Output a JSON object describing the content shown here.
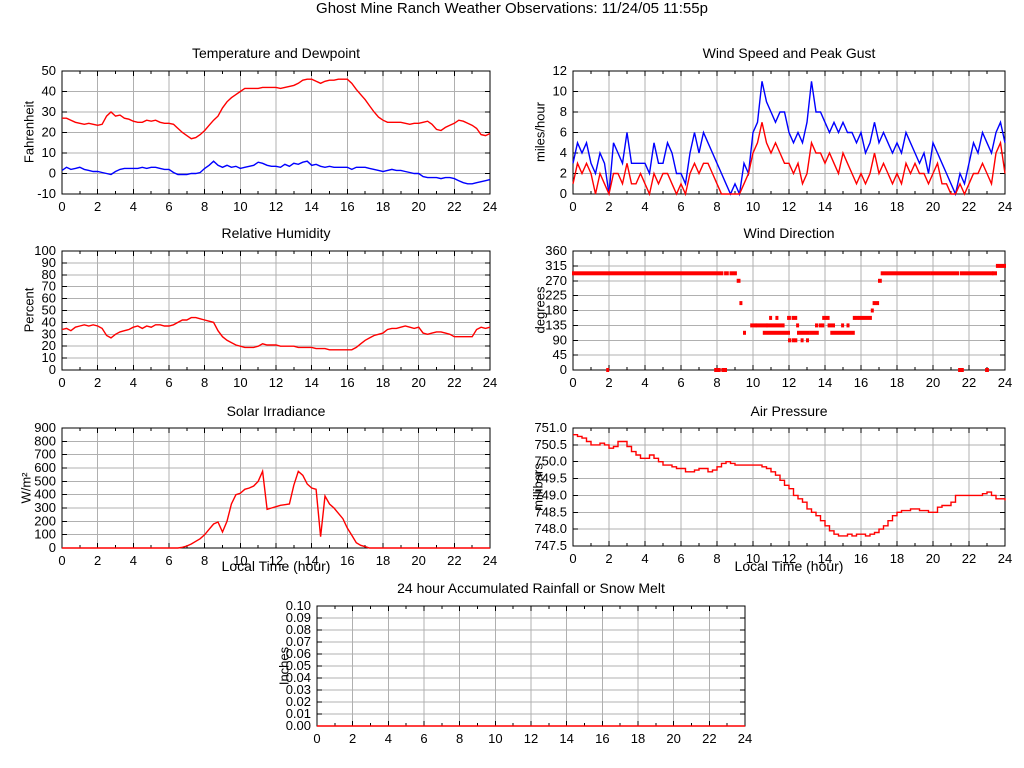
{
  "page_title": "Ghost Mine Ranch Weather Observations: 11/24/05 11:55p",
  "colors": {
    "series_red": "#ff0000",
    "series_blue": "#0000ff",
    "grid": "#b0b0b0",
    "axis": "#000000",
    "background": "#ffffff"
  },
  "chart_data": [
    {
      "id": "temperature_dewpoint",
      "type": "line",
      "title": "Temperature and Dewpoint",
      "ylabel": "Fahrenheit",
      "xlim": [
        0,
        24
      ],
      "xtick_step": 2,
      "xtick_minor_step": 1,
      "ylim": [
        -10,
        50
      ],
      "ytick_step": 10,
      "ytick_decimals": 0,
      "x_start": 0,
      "x_step": 0.25,
      "grid": true,
      "legend": "none",
      "series": [
        {
          "name": "temperature",
          "color": "#ff0000",
          "values": [
            27,
            27,
            26,
            25,
            24.5,
            24,
            24.5,
            24,
            23.5,
            24,
            28,
            30,
            28,
            28.5,
            27,
            26.5,
            25.5,
            25,
            25,
            26,
            25.5,
            26,
            25,
            24.5,
            24.5,
            24,
            22,
            20,
            18.5,
            17,
            17.5,
            19,
            21,
            23.5,
            26,
            28,
            32,
            35,
            37,
            38.5,
            40,
            41.5,
            41.5,
            41.5,
            41.5,
            42,
            42,
            42,
            42,
            41.5,
            42,
            42.5,
            43,
            44,
            45.5,
            46,
            46,
            45,
            44,
            45,
            45.5,
            45.5,
            46,
            46,
            46,
            44,
            41,
            38.5,
            36,
            33,
            30,
            27.5,
            26,
            25,
            25,
            25,
            25,
            24.5,
            24,
            24.5,
            24.5,
            25,
            25.5,
            24,
            21.5,
            21,
            22.5,
            23.5,
            24.5,
            26,
            25.5,
            24.5,
            23.5,
            22,
            19,
            18.5,
            19.5
          ]
        },
        {
          "name": "dewpoint",
          "color": "#0000ff",
          "values": [
            1.5,
            3,
            2,
            2.5,
            3,
            2,
            1.5,
            1,
            1,
            0.5,
            0,
            -0.5,
            1,
            2,
            2.5,
            2.5,
            2.5,
            2.5,
            3,
            2.5,
            3,
            3,
            2.5,
            2,
            2,
            0.5,
            -0.5,
            -0.5,
            -0.5,
            0,
            0,
            0.5,
            2.5,
            4,
            6,
            4,
            3,
            4,
            3,
            3.5,
            2.5,
            3,
            3.5,
            4,
            5.5,
            5,
            4,
            3.5,
            3.5,
            3,
            4.5,
            3.5,
            5,
            4.5,
            5.5,
            6,
            4,
            4.5,
            3.5,
            3,
            3.5,
            3,
            3,
            3,
            3,
            2,
            3,
            3,
            3,
            2.5,
            2,
            1.5,
            1,
            1.5,
            2,
            1.5,
            1.5,
            1,
            0.5,
            0,
            0,
            -1.5,
            -2,
            -2,
            -2,
            -2.5,
            -2,
            -2,
            -2.5,
            -3.5,
            -4.5,
            -5,
            -5,
            -4.5,
            -4,
            -3.5,
            -3
          ]
        }
      ]
    },
    {
      "id": "wind_speed_peak_gust",
      "type": "line",
      "title": "Wind Speed and Peak Gust",
      "ylabel": "miles/hour",
      "xlim": [
        0,
        24
      ],
      "xtick_step": 2,
      "xtick_minor_step": 1,
      "ylim": [
        0,
        12
      ],
      "ytick_step": 2,
      "ytick_decimals": 0,
      "x_start": 0,
      "x_step": 0.25,
      "grid": true,
      "legend": "none",
      "series": [
        {
          "name": "peak_gust",
          "color": "#0000ff",
          "values": [
            3,
            5,
            4,
            5,
            3,
            2,
            4,
            3,
            0,
            5,
            4,
            3,
            6,
            3,
            3,
            3,
            3,
            2,
            5,
            3,
            3,
            5,
            4,
            2,
            2,
            1,
            4,
            6,
            4,
            6,
            5,
            4,
            3,
            2,
            1,
            0,
            1,
            0,
            3,
            2,
            6,
            7,
            11,
            9,
            8,
            7,
            8,
            8,
            6,
            5,
            6,
            5,
            7,
            11,
            8,
            8,
            7,
            6,
            7,
            6,
            7,
            6,
            6,
            5,
            6,
            4,
            5,
            7,
            5,
            6,
            5,
            4,
            5,
            4,
            6,
            5,
            4,
            3,
            4,
            2,
            5,
            4,
            3,
            2,
            1,
            0,
            2,
            1,
            3,
            5,
            4,
            6,
            5,
            4,
            6,
            7,
            5
          ]
        },
        {
          "name": "wind_speed",
          "color": "#ff0000",
          "values": [
            1,
            3,
            2,
            3,
            2,
            0,
            2,
            1,
            0,
            2,
            2,
            1,
            3,
            1,
            1,
            2,
            1,
            0,
            2,
            1,
            2,
            2,
            1,
            0,
            1,
            0,
            2,
            3,
            2,
            3,
            3,
            2,
            1,
            0,
            0,
            0,
            0,
            0,
            1,
            2,
            4,
            5,
            7,
            5,
            4,
            5,
            4,
            3,
            3,
            2,
            3,
            1,
            2,
            5,
            4,
            4,
            3,
            4,
            3,
            2,
            4,
            3,
            2,
            1,
            2,
            1,
            2,
            4,
            2,
            3,
            2,
            1,
            2,
            1,
            3,
            2,
            3,
            2,
            2,
            1,
            2,
            3,
            1,
            1,
            0,
            0,
            1,
            0,
            1,
            2,
            2,
            3,
            2,
            1,
            4,
            5,
            2
          ]
        }
      ]
    },
    {
      "id": "relative_humidity",
      "type": "line",
      "title": "Relative Humidity",
      "ylabel": "Percent",
      "xlim": [
        0,
        24
      ],
      "xtick_step": 2,
      "xtick_minor_step": 1,
      "ylim": [
        0,
        100
      ],
      "ytick_step": 10,
      "ytick_decimals": 0,
      "x_start": 0,
      "x_step": 0.25,
      "grid": true,
      "legend": "none",
      "series": [
        {
          "name": "relative_humidity",
          "color": "#ff0000",
          "values": [
            34,
            35,
            33,
            36,
            37,
            38,
            37,
            38,
            37,
            35,
            29,
            27,
            30,
            32,
            33,
            34,
            36,
            37,
            35,
            37,
            36,
            38,
            38,
            37,
            37,
            38,
            40,
            42,
            42,
            44,
            44,
            43,
            42,
            41,
            40,
            33,
            28,
            25,
            23,
            21,
            20,
            19,
            19,
            19,
            20,
            22,
            21,
            21,
            21,
            20,
            20,
            20,
            20,
            19,
            19,
            19,
            19,
            18,
            18,
            18,
            17,
            17,
            17,
            17,
            17,
            17,
            19,
            22,
            25,
            27,
            29,
            30,
            31,
            34,
            35,
            35,
            36,
            37,
            36,
            35,
            36,
            31,
            30,
            31,
            32,
            32,
            31,
            30,
            28,
            28,
            28,
            28,
            28,
            34,
            36,
            35,
            36
          ]
        }
      ]
    },
    {
      "id": "wind_direction",
      "type": "scatter",
      "title": "Wind Direction",
      "ylabel": "degrees",
      "xlim": [
        0,
        24
      ],
      "xtick_step": 2,
      "xtick_minor_step": 1,
      "ylim": [
        0,
        360
      ],
      "ytick_step": 45,
      "ytick_decimals": 0,
      "grid": true,
      "legend": "none",
      "color": "#ff0000",
      "segments": [
        [
          0.0,
          2.0,
          292.5
        ],
        [
          2.1,
          8.3,
          292.5
        ],
        [
          1.9,
          1.95,
          0
        ],
        [
          7.9,
          8.15,
          0
        ],
        [
          8.3,
          8.5,
          0
        ],
        [
          8.45,
          8.6,
          292.5
        ],
        [
          8.75,
          9.05,
          292.5
        ],
        [
          9.15,
          9.25,
          270
        ],
        [
          9.3,
          9.35,
          202.5
        ],
        [
          9.5,
          9.55,
          112.5
        ],
        [
          9.9,
          10.15,
          135
        ],
        [
          10.2,
          10.75,
          135
        ],
        [
          10.8,
          11.7,
          135
        ],
        [
          10.6,
          12.0,
          112.5
        ],
        [
          10.95,
          11.0,
          157.5
        ],
        [
          11.3,
          11.35,
          157.5
        ],
        [
          11.95,
          12.05,
          157.5
        ],
        [
          12.0,
          12.05,
          90
        ],
        [
          12.2,
          12.25,
          90
        ],
        [
          12.35,
          12.4,
          90
        ],
        [
          12.2,
          12.4,
          157.5
        ],
        [
          12.45,
          12.5,
          135
        ],
        [
          12.5,
          13.1,
          112.5
        ],
        [
          12.7,
          12.75,
          90
        ],
        [
          13.0,
          13.05,
          90
        ],
        [
          13.2,
          13.6,
          112.5
        ],
        [
          13.5,
          13.55,
          135
        ],
        [
          13.7,
          13.75,
          135
        ],
        [
          13.85,
          13.9,
          135
        ],
        [
          13.9,
          14.0,
          157.5
        ],
        [
          14.1,
          14.2,
          157.5
        ],
        [
          14.2,
          14.5,
          135
        ],
        [
          14.35,
          15.6,
          112.5
        ],
        [
          14.95,
          15.0,
          135
        ],
        [
          15.25,
          15.3,
          135
        ],
        [
          15.6,
          15.65,
          157.5
        ],
        [
          15.75,
          15.8,
          157.5
        ],
        [
          15.9,
          16.55,
          157.5
        ],
        [
          16.6,
          16.65,
          180
        ],
        [
          16.7,
          16.95,
          202.5
        ],
        [
          17.0,
          17.1,
          270
        ],
        [
          17.15,
          19.8,
          292.5
        ],
        [
          19.9,
          21.4,
          292.5
        ],
        [
          21.45,
          21.5,
          0
        ],
        [
          21.6,
          21.65,
          0
        ],
        [
          21.55,
          23.3,
          292.5
        ],
        [
          22.95,
          23.05,
          0
        ],
        [
          23.35,
          23.5,
          292.5
        ],
        [
          23.55,
          24.0,
          315
        ]
      ]
    },
    {
      "id": "solar_irradiance",
      "type": "line",
      "title": "Solar Irradiance",
      "ylabel": "W/m²",
      "xlabel": "Local Time (hour)",
      "xlim": [
        0,
        24
      ],
      "xtick_step": 2,
      "xtick_minor_step": 1,
      "ylim": [
        0,
        900
      ],
      "ytick_step": 100,
      "ytick_decimals": 0,
      "x_start": 0,
      "x_step": 0.25,
      "grid": true,
      "legend": "none",
      "series": [
        {
          "name": "solar_irradiance",
          "color": "#ff0000",
          "values": [
            0,
            0,
            0,
            0,
            0,
            0,
            0,
            0,
            0,
            0,
            0,
            0,
            0,
            0,
            0,
            0,
            0,
            0,
            0,
            0,
            0,
            0,
            0,
            0,
            0,
            0,
            0,
            5,
            15,
            30,
            50,
            70,
            100,
            140,
            180,
            195,
            120,
            200,
            330,
            400,
            410,
            440,
            450,
            465,
            500,
            575,
            290,
            300,
            310,
            320,
            325,
            330,
            470,
            575,
            545,
            480,
            450,
            440,
            85,
            390,
            330,
            300,
            260,
            220,
            150,
            95,
            40,
            20,
            10,
            0,
            0,
            0,
            0,
            0,
            0,
            0,
            0,
            0,
            0,
            0,
            0,
            0,
            0,
            0,
            0,
            0,
            0,
            0,
            0,
            0,
            0,
            0,
            0,
            0,
            0,
            0,
            0
          ]
        }
      ]
    },
    {
      "id": "air_pressure",
      "type": "step-line",
      "title": "Air Pressure",
      "ylabel": "millibars",
      "xlabel": "Local Time (hour)",
      "xlim": [
        0,
        24
      ],
      "xtick_step": 2,
      "xtick_minor_step": 1,
      "ylim": [
        747.5,
        751.0
      ],
      "ytick_step": 0.5,
      "ytick_decimals": 1,
      "x_start": 0,
      "x_step": 0.25,
      "step": true,
      "grid": true,
      "legend": "none",
      "series": [
        {
          "name": "air_pressure",
          "color": "#ff0000",
          "values": [
            750.8,
            750.75,
            750.7,
            750.6,
            750.5,
            750.5,
            750.55,
            750.5,
            750.4,
            750.45,
            750.6,
            750.6,
            750.45,
            750.3,
            750.2,
            750.1,
            750.1,
            750.2,
            750.1,
            750.0,
            749.9,
            749.9,
            749.85,
            749.8,
            749.8,
            749.7,
            749.7,
            749.75,
            749.8,
            749.8,
            749.7,
            749.75,
            749.85,
            749.95,
            750.0,
            749.95,
            749.9,
            749.9,
            749.9,
            749.9,
            749.9,
            749.9,
            749.85,
            749.8,
            749.7,
            749.6,
            749.45,
            749.3,
            749.2,
            749.0,
            748.9,
            748.8,
            748.6,
            748.5,
            748.4,
            748.25,
            748.1,
            747.95,
            747.85,
            747.8,
            747.8,
            747.85,
            747.8,
            747.85,
            747.85,
            747.8,
            747.85,
            747.9,
            748.0,
            748.1,
            748.25,
            748.4,
            748.5,
            748.55,
            748.55,
            748.6,
            748.6,
            748.55,
            748.55,
            748.5,
            748.5,
            748.65,
            748.7,
            748.7,
            748.8,
            749.0,
            749.0,
            749.0,
            749.0,
            749.0,
            749.0,
            749.05,
            749.1,
            749.0,
            748.9,
            748.9,
            748.85
          ]
        }
      ]
    },
    {
      "id": "rainfall_snow_melt",
      "type": "line",
      "title": "24 hour Accumulated Rainfall or Snow Melt",
      "ylabel": "Inches",
      "xlim": [
        0,
        24
      ],
      "xtick_step": 2,
      "xtick_minor_step": 1,
      "ylim": [
        0,
        0.1
      ],
      "ytick_step": 0.01,
      "ytick_decimals": 2,
      "x_start": 0,
      "x_step": 24,
      "grid": true,
      "legend": "none",
      "series": [
        {
          "name": "accumulated_rainfall",
          "color": "#ff0000",
          "values": [
            0,
            0
          ]
        }
      ]
    }
  ]
}
